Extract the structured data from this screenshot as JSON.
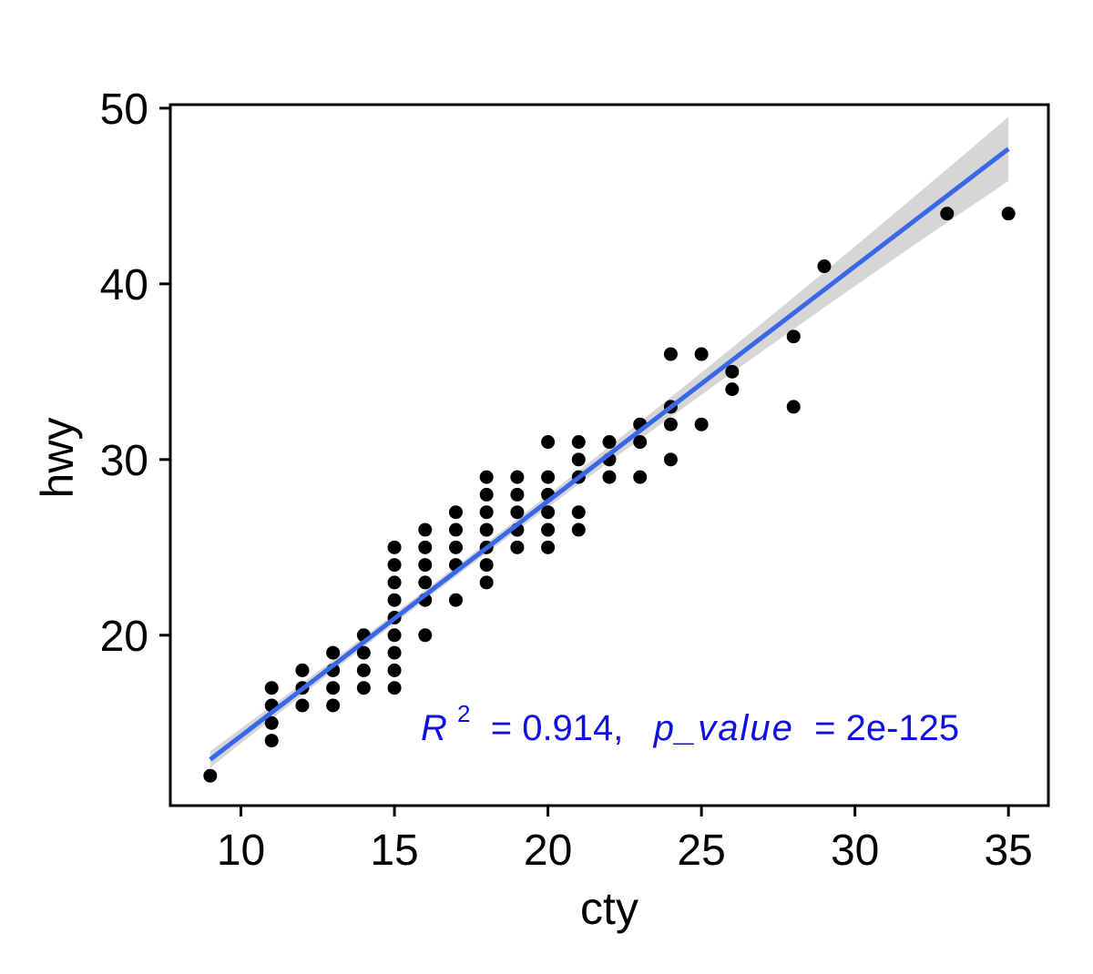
{
  "chart_data": {
    "type": "scatter",
    "xlabel": "cty",
    "ylabel": "hwy",
    "xlim": [
      7.7,
      36.3
    ],
    "ylim": [
      10.3,
      50.2
    ],
    "x_ticks": [
      10,
      15,
      20,
      25,
      30,
      35
    ],
    "y_ticks": [
      20,
      30,
      40,
      50
    ],
    "grid": false,
    "point_color": "#000000",
    "points": [
      [
        9,
        12
      ],
      [
        11,
        14
      ],
      [
        11,
        15
      ],
      [
        11,
        16
      ],
      [
        11,
        17
      ],
      [
        12,
        16
      ],
      [
        12,
        17
      ],
      [
        12,
        18
      ],
      [
        13,
        16
      ],
      [
        13,
        17
      ],
      [
        13,
        18
      ],
      [
        13,
        19
      ],
      [
        14,
        17
      ],
      [
        14,
        18
      ],
      [
        14,
        19
      ],
      [
        14,
        20
      ],
      [
        15,
        17
      ],
      [
        15,
        18
      ],
      [
        15,
        19
      ],
      [
        15,
        20
      ],
      [
        15,
        21
      ],
      [
        15,
        22
      ],
      [
        15,
        23
      ],
      [
        15,
        24
      ],
      [
        15,
        25
      ],
      [
        16,
        20
      ],
      [
        16,
        22
      ],
      [
        16,
        23
      ],
      [
        16,
        24
      ],
      [
        16,
        25
      ],
      [
        16,
        26
      ],
      [
        17,
        22
      ],
      [
        17,
        24
      ],
      [
        17,
        25
      ],
      [
        17,
        26
      ],
      [
        17,
        27
      ],
      [
        18,
        23
      ],
      [
        18,
        24
      ],
      [
        18,
        25
      ],
      [
        18,
        26
      ],
      [
        18,
        27
      ],
      [
        18,
        28
      ],
      [
        18,
        29
      ],
      [
        19,
        25
      ],
      [
        19,
        26
      ],
      [
        19,
        27
      ],
      [
        19,
        28
      ],
      [
        19,
        29
      ],
      [
        20,
        25
      ],
      [
        20,
        26
      ],
      [
        20,
        27
      ],
      [
        20,
        28
      ],
      [
        20,
        29
      ],
      [
        20,
        31
      ],
      [
        21,
        26
      ],
      [
        21,
        27
      ],
      [
        21,
        29
      ],
      [
        21,
        30
      ],
      [
        21,
        31
      ],
      [
        22,
        29
      ],
      [
        22,
        30
      ],
      [
        22,
        31
      ],
      [
        23,
        29
      ],
      [
        23,
        31
      ],
      [
        23,
        32
      ],
      [
        24,
        30
      ],
      [
        24,
        32
      ],
      [
        24,
        33
      ],
      [
        24,
        36
      ],
      [
        25,
        32
      ],
      [
        25,
        36
      ],
      [
        26,
        34
      ],
      [
        26,
        35
      ],
      [
        28,
        33
      ],
      [
        28,
        37
      ],
      [
        29,
        41
      ],
      [
        33,
        44
      ],
      [
        35,
        44
      ]
    ],
    "regression": {
      "slope": 1.337,
      "intercept": 0.892,
      "x_range": [
        9,
        35
      ],
      "color": "#3A66E8",
      "band_color": "#C8C8C8"
    },
    "annotation": {
      "r_symbol": "R",
      "r_exp": "2",
      "r_rest": " = 0.914,  ",
      "p_symbol": "p_value",
      "p_rest": " = 2e-125",
      "color": "#1010E0"
    }
  }
}
